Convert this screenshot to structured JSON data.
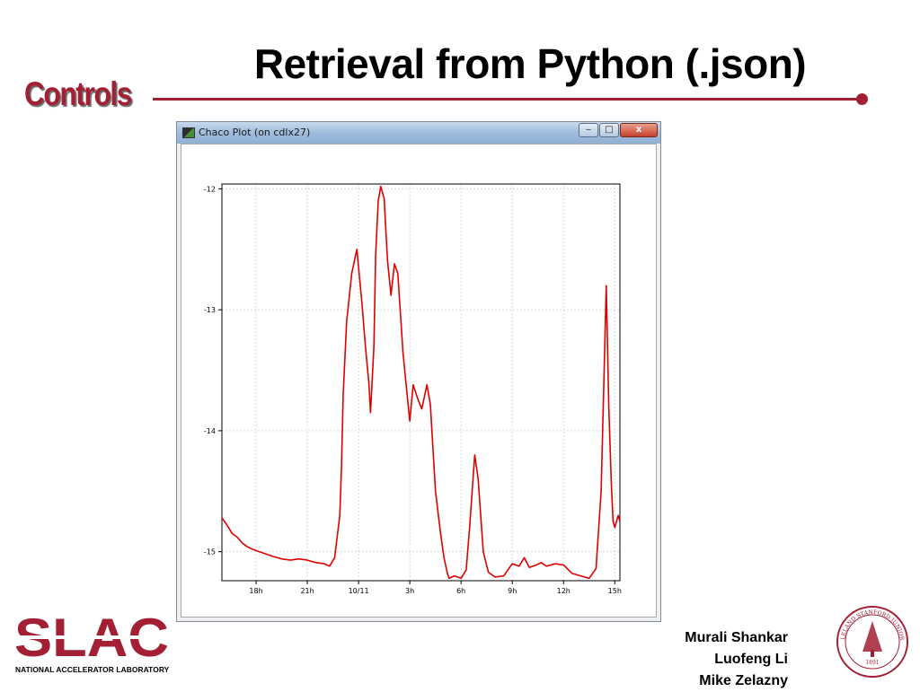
{
  "slide": {
    "title": "Retrieval from Python (.json)",
    "section_label": "Controls",
    "authors": [
      "Murali Shankar",
      "Luofeng Li",
      "Mike Zelazny"
    ],
    "brand_color": "#a31f34",
    "logo": {
      "name": "SLAC",
      "tagline": "NATIONAL ACCELERATOR LABORATORY",
      "seal_text": "LELAND STANFORD JUNIOR UNIVERSITY",
      "seal_year": "1891"
    }
  },
  "window": {
    "title": "Chaco Plot (on cdlx27)",
    "buttons": {
      "minimize_icon": "minimize-icon",
      "maximize_icon": "maximize-icon",
      "close_icon": "close-icon",
      "close_label": "x"
    }
  },
  "chart_data": {
    "type": "line",
    "title": "",
    "xlabel": "",
    "ylabel": "",
    "series_color": "#e00000",
    "grid": true,
    "x_ticks": [
      "18h",
      "21h",
      "10/11",
      "3h",
      "6h",
      "9h",
      "12h",
      "15h"
    ],
    "y_ticks": [
      "-12",
      "-13",
      "-14",
      "-15"
    ],
    "ylim": [
      -15.24,
      -11.96
    ],
    "x_unit": "hours since 10/10 16:00",
    "xlim": [
      0,
      23.3
    ],
    "series": [
      {
        "x": [
          0,
          0.3,
          0.6,
          0.9,
          1.2,
          1.5,
          1.8,
          2.2,
          2.6,
          3.0,
          3.5,
          4.0,
          4.5,
          5.0,
          5.5,
          6.0,
          6.3,
          6.6,
          6.9,
          7.0,
          7.1,
          7.3,
          7.6,
          7.9,
          8.0,
          8.2,
          8.4,
          8.6,
          8.7,
          8.9,
          9.0,
          9.15,
          9.3,
          9.5,
          9.6,
          9.7,
          9.9,
          10.1,
          10.3,
          10.6,
          10.9,
          11.0,
          11.2,
          11.5,
          11.7,
          12.0,
          12.2,
          12.5,
          12.8,
          13.0,
          13.2,
          13.3,
          13.6,
          14.0,
          14.3,
          14.5,
          14.8,
          15.0,
          15.3,
          15.6,
          16.0,
          16.5,
          17.0,
          17.4,
          17.7,
          18.0,
          18.4,
          18.7,
          19.0,
          19.5,
          20.0,
          20.5,
          21.0,
          21.5,
          21.9,
          22.2,
          22.5,
          22.65,
          22.8,
          22.9,
          23.0,
          23.2,
          23.3
        ],
        "y": [
          -14.72,
          -14.78,
          -14.85,
          -14.88,
          -14.93,
          -14.96,
          -14.98,
          -15.0,
          -15.02,
          -15.04,
          -15.06,
          -15.07,
          -15.06,
          -15.07,
          -15.09,
          -15.1,
          -15.12,
          -15.05,
          -14.7,
          -14.3,
          -13.7,
          -13.1,
          -12.7,
          -12.5,
          -12.65,
          -12.95,
          -13.3,
          -13.6,
          -13.85,
          -13.3,
          -12.55,
          -12.1,
          -11.98,
          -12.08,
          -12.35,
          -12.6,
          -12.88,
          -12.62,
          -12.7,
          -13.35,
          -13.78,
          -13.92,
          -13.62,
          -13.75,
          -13.82,
          -13.62,
          -13.78,
          -14.5,
          -14.85,
          -15.05,
          -15.18,
          -15.22,
          -15.2,
          -15.22,
          -15.15,
          -14.8,
          -14.2,
          -14.4,
          -15.0,
          -15.17,
          -15.21,
          -15.2,
          -15.1,
          -15.12,
          -15.05,
          -15.13,
          -15.11,
          -15.09,
          -15.12,
          -15.1,
          -15.11,
          -15.18,
          -15.2,
          -15.22,
          -15.14,
          -14.5,
          -12.8,
          -13.8,
          -14.45,
          -14.75,
          -14.8,
          -14.7,
          -14.75
        ]
      }
    ]
  }
}
